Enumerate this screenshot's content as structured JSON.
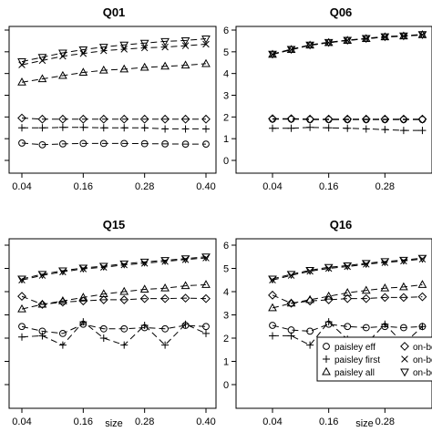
{
  "chart_data": [
    {
      "type": "line",
      "title": "Q01",
      "xlabel": "",
      "x": [
        0.04,
        0.08,
        0.12,
        0.16,
        0.2,
        0.24,
        0.28,
        0.32,
        0.36,
        0.4
      ],
      "xticks": [
        "0.04",
        "0.16",
        "0.28",
        "0.40"
      ],
      "ylim": [
        0,
        6
      ],
      "yticks": [],
      "series": [
        {
          "name": "paisley eff",
          "marker": "circle",
          "values": [
            0.8,
            0.72,
            0.76,
            0.78,
            0.78,
            0.78,
            0.77,
            0.76,
            0.75,
            0.75
          ]
        },
        {
          "name": "paisley first",
          "marker": "plus",
          "values": [
            1.5,
            1.5,
            1.52,
            1.52,
            1.5,
            1.5,
            1.5,
            1.45,
            1.45,
            1.45
          ]
        },
        {
          "name": "paisley all",
          "marker": "triangle",
          "values": [
            3.6,
            3.75,
            3.9,
            4.05,
            4.15,
            4.2,
            4.28,
            4.33,
            4.38,
            4.45
          ]
        },
        {
          "name": "on-boo",
          "marker": "diamond",
          "values": [
            1.95,
            1.9,
            1.9,
            1.9,
            1.9,
            1.9,
            1.9,
            1.9,
            1.9,
            1.9
          ]
        },
        {
          "name": "on-boo",
          "marker": "x",
          "values": [
            4.4,
            4.6,
            4.8,
            4.92,
            5.05,
            5.12,
            5.18,
            5.22,
            5.28,
            5.35
          ]
        },
        {
          "name": "on-boo",
          "marker": "tri-down",
          "values": [
            4.55,
            4.75,
            4.95,
            5.1,
            5.22,
            5.32,
            5.4,
            5.48,
            5.52,
            5.6
          ]
        }
      ]
    },
    {
      "type": "line",
      "title": "Q06",
      "xlabel": "",
      "x": [
        0.04,
        0.08,
        0.12,
        0.16,
        0.2,
        0.24,
        0.28,
        0.32,
        0.36
      ],
      "xticks": [
        "0.04",
        "0.16",
        "0.28"
      ],
      "ylim": [
        0,
        6
      ],
      "yticks": [
        "0",
        "1",
        "2",
        "3",
        "4",
        "5",
        "6"
      ],
      "series": [
        {
          "name": "paisley eff",
          "marker": "circle",
          "values": [
            1.9,
            1.9,
            1.88,
            1.88,
            1.88,
            1.88,
            1.88,
            1.88,
            1.88
          ]
        },
        {
          "name": "paisley first",
          "marker": "plus",
          "values": [
            1.48,
            1.48,
            1.52,
            1.5,
            1.48,
            1.45,
            1.42,
            1.38,
            1.38
          ]
        },
        {
          "name": "paisley all",
          "marker": "triangle",
          "values": [
            4.88,
            5.1,
            5.3,
            5.42,
            5.52,
            5.6,
            5.68,
            5.72,
            5.78
          ]
        },
        {
          "name": "on-boo",
          "marker": "diamond",
          "values": [
            1.92,
            1.92,
            1.9,
            1.9,
            1.9,
            1.9,
            1.9,
            1.9,
            1.9
          ]
        },
        {
          "name": "on-boo",
          "marker": "x",
          "values": [
            4.88,
            5.1,
            5.3,
            5.42,
            5.52,
            5.6,
            5.68,
            5.72,
            5.78
          ]
        },
        {
          "name": "on-boo",
          "marker": "tri-down",
          "values": [
            4.9,
            5.12,
            5.32,
            5.44,
            5.54,
            5.62,
            5.7,
            5.74,
            5.8
          ]
        }
      ]
    },
    {
      "type": "line",
      "title": "Q15",
      "xlabel": "size",
      "x": [
        0.04,
        0.08,
        0.12,
        0.16,
        0.2,
        0.24,
        0.28,
        0.32,
        0.36,
        0.4
      ],
      "xticks": [
        "0.04",
        "0.16",
        "0.28",
        "0.40"
      ],
      "ylim": [
        0,
        6
      ],
      "yticks": [],
      "series": [
        {
          "name": "paisley eff",
          "marker": "circle",
          "values": [
            2.5,
            2.3,
            2.2,
            2.6,
            2.4,
            2.4,
            2.45,
            2.4,
            2.55,
            2.5
          ]
        },
        {
          "name": "paisley first",
          "marker": "plus",
          "values": [
            2.05,
            2.1,
            1.7,
            2.7,
            2.0,
            1.7,
            2.55,
            1.7,
            2.6,
            2.2
          ]
        },
        {
          "name": "paisley all",
          "marker": "triangle",
          "values": [
            3.25,
            3.45,
            3.6,
            3.75,
            3.9,
            4.0,
            4.1,
            4.15,
            4.25,
            4.3
          ]
        },
        {
          "name": "on-boo",
          "marker": "diamond",
          "values": [
            3.8,
            3.45,
            3.55,
            3.6,
            3.65,
            3.65,
            3.7,
            3.7,
            3.72,
            3.7
          ]
        },
        {
          "name": "on-boo",
          "marker": "x",
          "values": [
            4.5,
            4.7,
            4.85,
            4.98,
            5.05,
            5.15,
            5.22,
            5.3,
            5.38,
            5.45
          ]
        },
        {
          "name": "on-boo",
          "marker": "tri-down",
          "values": [
            4.55,
            4.75,
            4.9,
            5.02,
            5.1,
            5.2,
            5.28,
            5.35,
            5.42,
            5.5
          ]
        }
      ]
    },
    {
      "type": "line",
      "title": "Q16",
      "xlabel": "size",
      "x": [
        0.04,
        0.08,
        0.12,
        0.16,
        0.2,
        0.24,
        0.28,
        0.32,
        0.36
      ],
      "xticks": [
        "0.04",
        "0.16",
        "0.28"
      ],
      "ylim": [
        0,
        6
      ],
      "yticks": [
        "0",
        "1",
        "2",
        "3",
        "4",
        "5",
        "6"
      ],
      "legend_position": "bottom-right",
      "series": [
        {
          "name": "paisley eff",
          "marker": "circle",
          "values": [
            2.55,
            2.35,
            2.3,
            2.6,
            2.5,
            2.45,
            2.5,
            2.45,
            2.5
          ]
        },
        {
          "name": "paisley first",
          "marker": "plus",
          "values": [
            2.1,
            2.1,
            1.7,
            2.7,
            1.95,
            1.75,
            2.6,
            1.75,
            2.5
          ]
        },
        {
          "name": "paisley all",
          "marker": "triangle",
          "values": [
            3.3,
            3.5,
            3.65,
            3.8,
            3.95,
            4.05,
            4.15,
            4.2,
            4.3
          ]
        },
        {
          "name": "on-boo",
          "marker": "diamond",
          "values": [
            3.85,
            3.5,
            3.6,
            3.65,
            3.7,
            3.7,
            3.75,
            3.75,
            3.78
          ]
        },
        {
          "name": "on-boo",
          "marker": "x",
          "values": [
            4.5,
            4.7,
            4.88,
            5.0,
            5.08,
            5.18,
            5.25,
            5.32,
            5.4
          ]
        },
        {
          "name": "on-boo",
          "marker": "tri-down",
          "values": [
            4.55,
            4.75,
            4.92,
            5.05,
            5.12,
            5.22,
            5.3,
            5.36,
            5.44
          ]
        }
      ]
    }
  ],
  "legend": {
    "entries": [
      {
        "label": "paisley eff",
        "marker": "circle"
      },
      {
        "label": "paisley first",
        "marker": "plus"
      },
      {
        "label": "paisley all",
        "marker": "triangle"
      },
      {
        "label": "on-boo",
        "marker": "diamond"
      },
      {
        "label": "on-boo",
        "marker": "x"
      },
      {
        "label": "on-boo",
        "marker": "tri-down"
      }
    ]
  }
}
